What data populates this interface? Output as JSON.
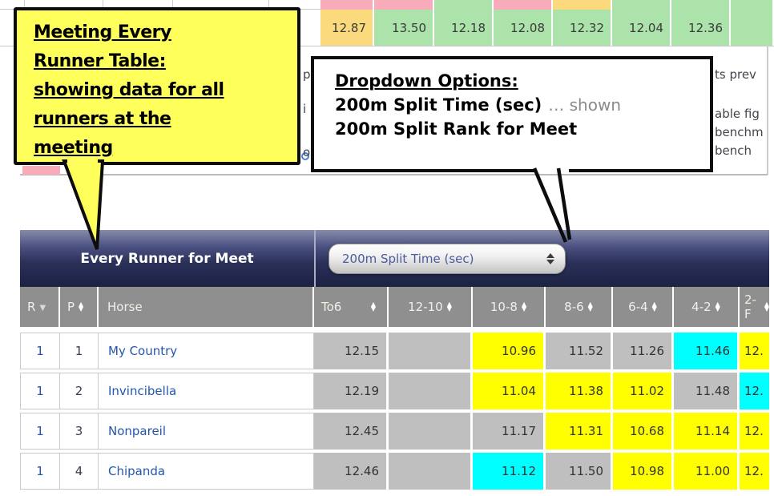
{
  "top_table": {
    "strip_colors": [
      "pink",
      "pink",
      "green",
      "pink",
      "gold",
      "green",
      "green",
      "green"
    ],
    "row": {
      "values": [
        "12.87",
        "13.50",
        "12.18",
        "12.08",
        "12.32",
        "12.04",
        "12.36",
        ""
      ],
      "colors": [
        "gold",
        "green",
        "green",
        "green",
        "green",
        "green",
        "green",
        "green"
      ]
    },
    "right_fragments": [
      "ts prev",
      "able fig",
      "benchm",
      "bench"
    ],
    "left_fragments": [
      "p",
      "i",
      "o"
    ]
  },
  "callout_meeting": {
    "lines": [
      "Meeting Every",
      "Runner Table:",
      "showing data for all",
      "runners at the",
      "meeting"
    ]
  },
  "callout_dropdown": {
    "heading": "Dropdown Options:",
    "line1_bold": "200m Split Time (sec)",
    "line1_rest": "… shown",
    "line2": "200m Split Rank for Meet"
  },
  "table": {
    "title": "Every Runner for Meet",
    "dropdown_value": "200m Split Time (sec)",
    "columns": [
      {
        "label": "R",
        "sort": "down"
      },
      {
        "label": "P",
        "sort": "updown"
      },
      {
        "label": "Horse",
        "sort": "none"
      },
      {
        "label": "To6",
        "sort": "updown"
      },
      {
        "label": "12-10",
        "sort": "updown"
      },
      {
        "label": "10-8",
        "sort": "updown"
      },
      {
        "label": "8-6",
        "sort": "updown"
      },
      {
        "label": "6-4",
        "sort": "updown"
      },
      {
        "label": "4-2",
        "sort": "updown"
      },
      {
        "label": "2-F",
        "sort": "updown"
      }
    ],
    "rows": [
      {
        "r": "1",
        "p": "1",
        "horse": "My Country",
        "splits": [
          {
            "v": "12.15",
            "c": "gray"
          },
          {
            "v": "",
            "c": "gray"
          },
          {
            "v": "10.96",
            "c": "yellow"
          },
          {
            "v": "11.52",
            "c": "gray"
          },
          {
            "v": "11.26",
            "c": "gray"
          },
          {
            "v": "11.46",
            "c": "cyan"
          },
          {
            "v": "12.",
            "c": "yellow"
          }
        ]
      },
      {
        "r": "1",
        "p": "2",
        "horse": "Invincibella",
        "splits": [
          {
            "v": "12.19",
            "c": "gray"
          },
          {
            "v": "",
            "c": "gray"
          },
          {
            "v": "11.04",
            "c": "yellow"
          },
          {
            "v": "11.38",
            "c": "yellow"
          },
          {
            "v": "11.02",
            "c": "yellow"
          },
          {
            "v": "11.48",
            "c": "gray"
          },
          {
            "v": "12.",
            "c": "cyan"
          }
        ]
      },
      {
        "r": "1",
        "p": "3",
        "horse": "Nonpareil",
        "splits": [
          {
            "v": "12.45",
            "c": "gray"
          },
          {
            "v": "",
            "c": "gray"
          },
          {
            "v": "11.17",
            "c": "gray"
          },
          {
            "v": "11.31",
            "c": "yellow"
          },
          {
            "v": "10.68",
            "c": "yellow"
          },
          {
            "v": "11.14",
            "c": "yellow"
          },
          {
            "v": "12.",
            "c": "yellow"
          }
        ]
      },
      {
        "r": "1",
        "p": "4",
        "horse": "Chipanda",
        "splits": [
          {
            "v": "12.46",
            "c": "gray"
          },
          {
            "v": "",
            "c": "gray"
          },
          {
            "v": "11.12",
            "c": "cyan"
          },
          {
            "v": "11.50",
            "c": "gray"
          },
          {
            "v": "10.98",
            "c": "yellow"
          },
          {
            "v": "11.00",
            "c": "yellow"
          },
          {
            "v": "12.",
            "c": "yellow"
          }
        ]
      }
    ]
  },
  "colors": {
    "pink": "#f8abb8",
    "green": "#abe3ab",
    "gold": "#fbd97d",
    "yellow": "#ffff00",
    "cyan": "#00ffff",
    "gray": "#bfbfbf",
    "white": "#ffffff",
    "callout_yellow": "#ffff5c",
    "link_blue": "#2356ae",
    "navy_dark": "#23284e",
    "header_gray": "#8f8f8f",
    "dropdown_text": "#4a5c9e"
  }
}
